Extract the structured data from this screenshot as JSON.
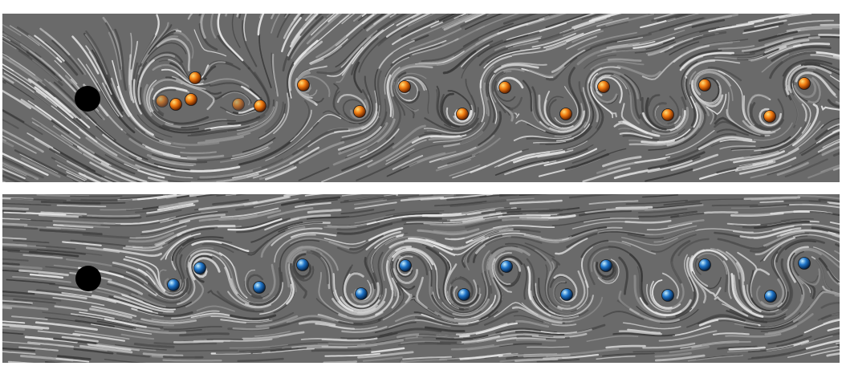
{
  "panels": [
    {
      "id": "top",
      "marker_color": "#f07a10",
      "marker_highlight": "#ffe07a",
      "marker_shadow": "#5a1c00",
      "marker_count": 18,
      "obstacle_color": "#000000"
    },
    {
      "id": "bottom",
      "marker_color": "#1f74c8",
      "marker_highlight": "#c8f0ff",
      "marker_shadow": "#021a38",
      "marker_count": 14,
      "obstacle_color": "#000000"
    }
  ],
  "colors": {
    "background": "#ffffff",
    "streak_dark": "#3a3a3a",
    "streak_mid": "#6a6a6a",
    "streak_light": "#e6e6e6"
  }
}
